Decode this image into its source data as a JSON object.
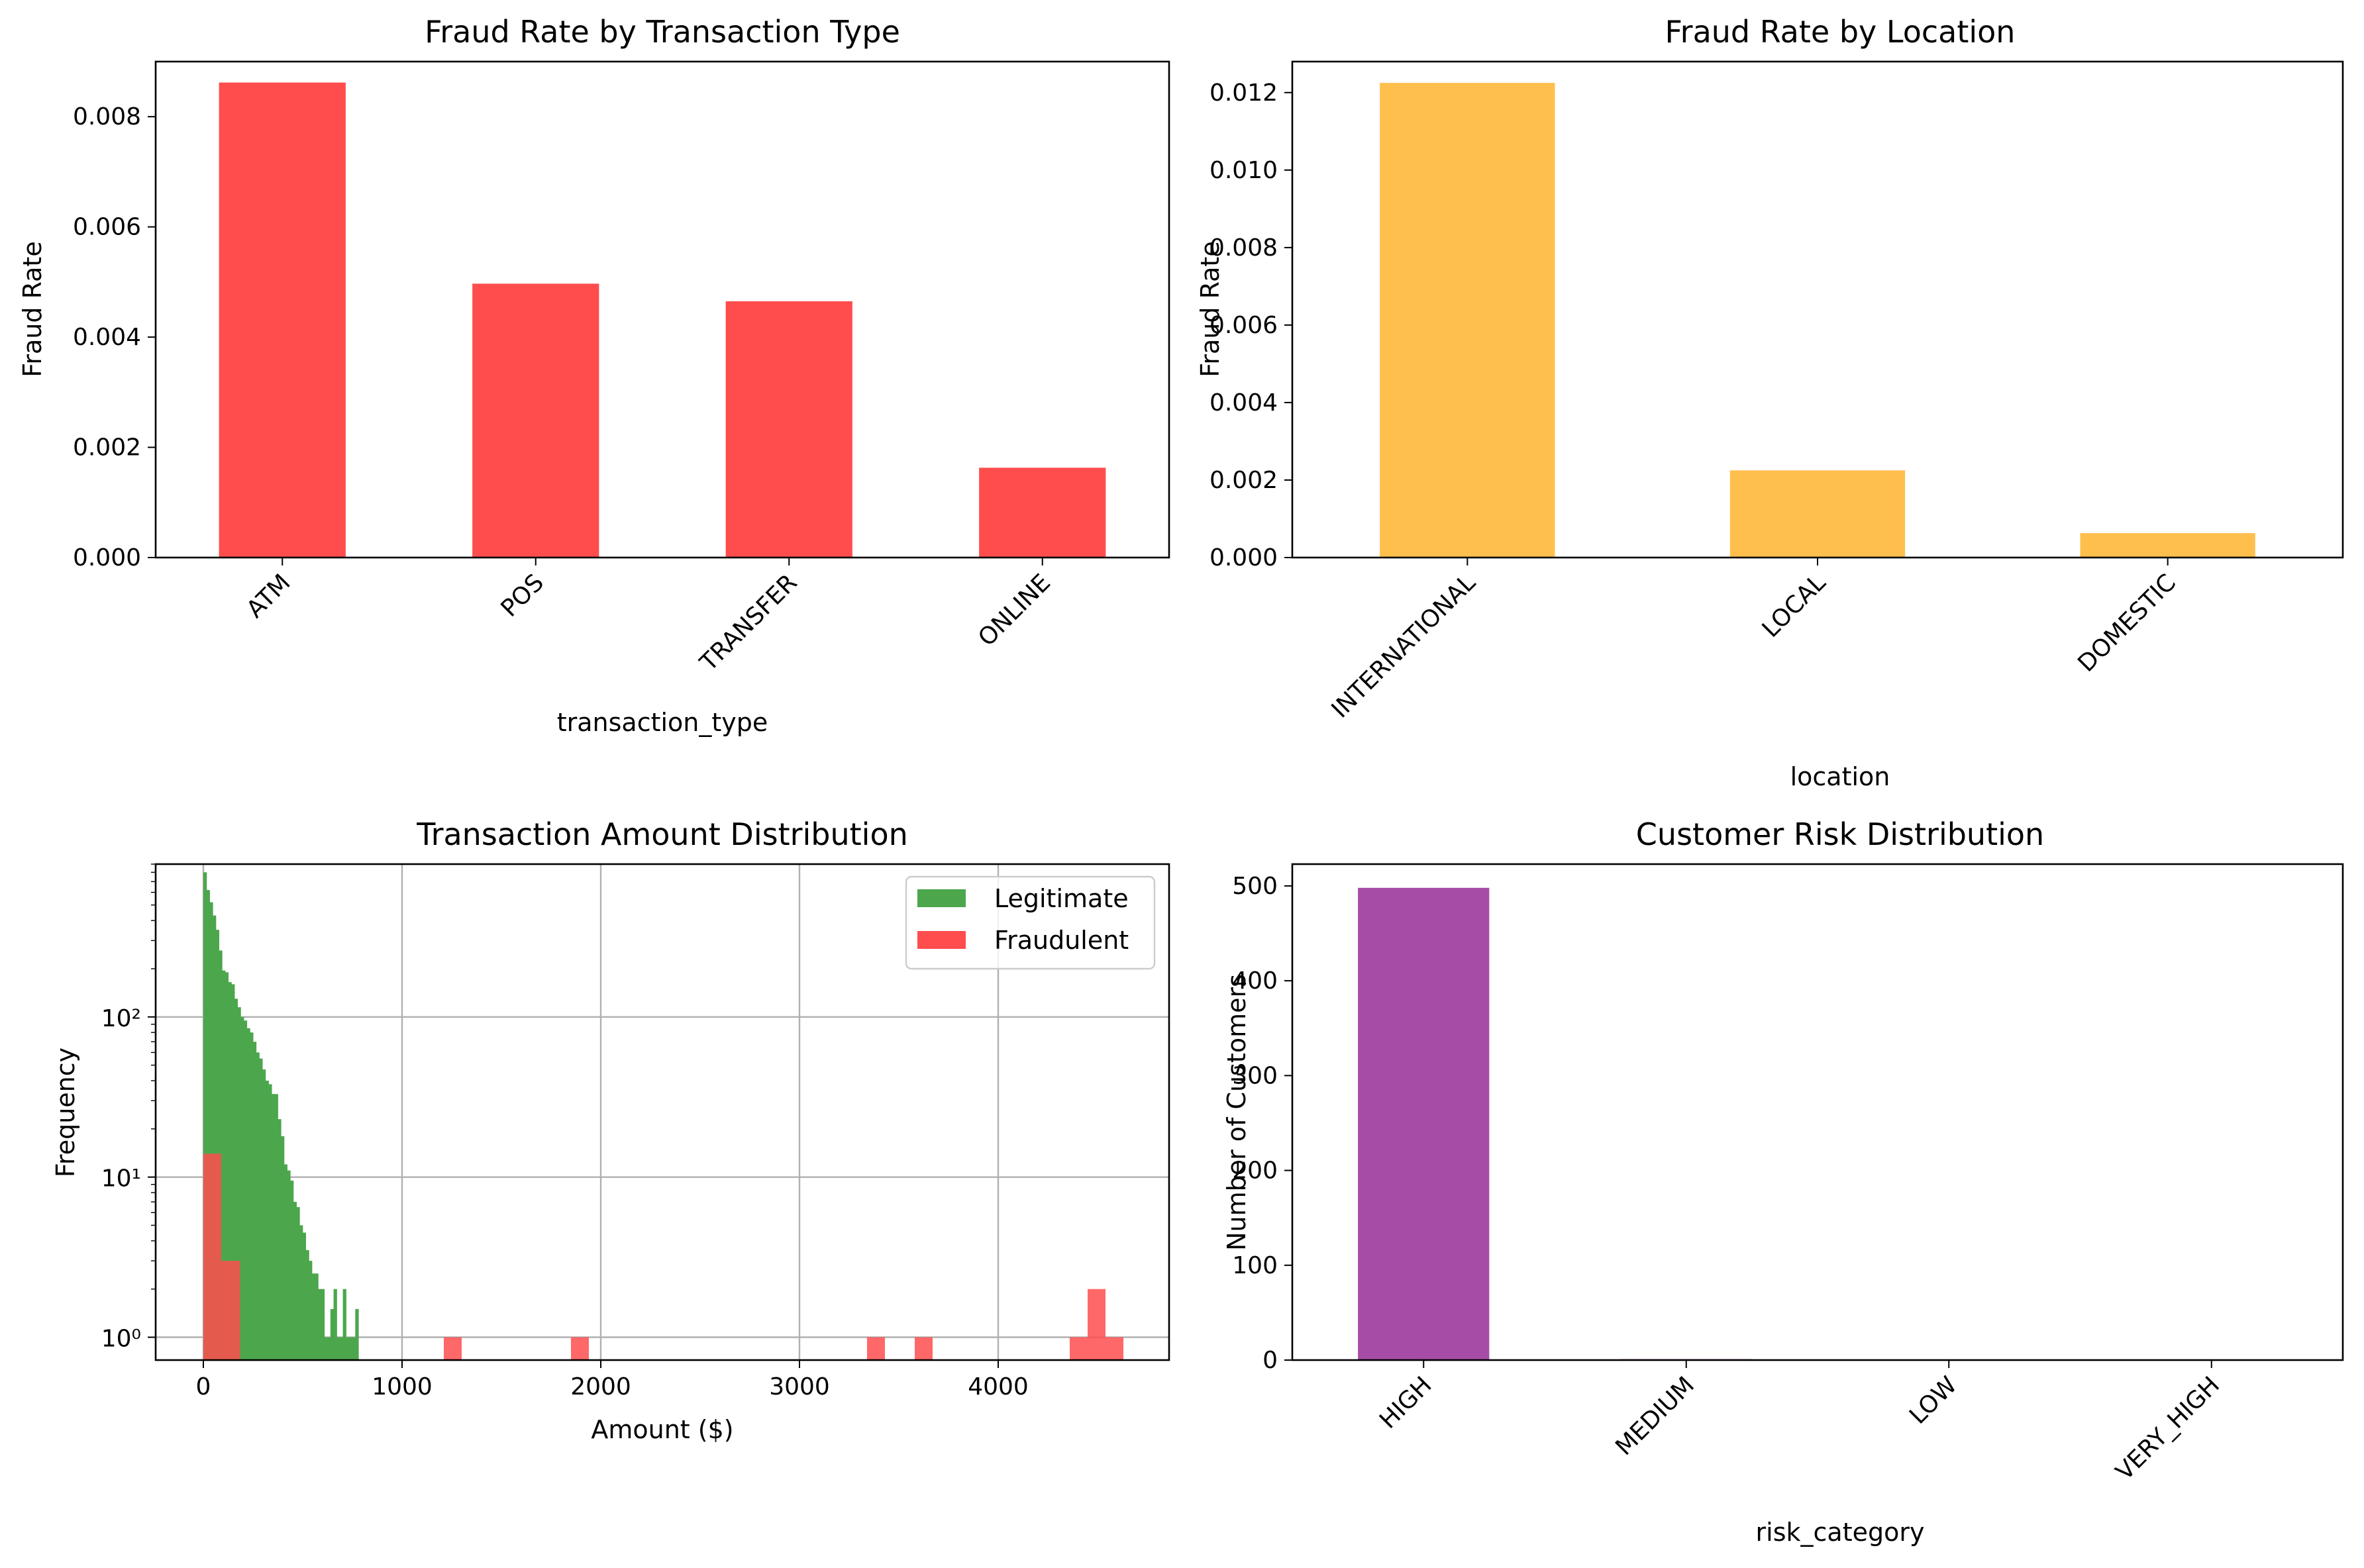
{
  "chart_data": [
    {
      "id": "type",
      "type": "bar",
      "title": "Fraud Rate by Transaction Type",
      "xlabel": "transaction_type",
      "ylabel": "Fraud Rate",
      "categories": [
        "ATM",
        "POS",
        "TRANSFER",
        "ONLINE"
      ],
      "values": [
        0.00862,
        0.00497,
        0.00465,
        0.00163
      ],
      "ylim": [
        0,
        0.009
      ],
      "yticks": [
        0.0,
        0.002,
        0.004,
        0.006,
        0.008
      ],
      "ytick_labels": [
        "0.000",
        "0.002",
        "0.004",
        "0.006",
        "0.008"
      ],
      "color": "#ff4d4d",
      "grid": false
    },
    {
      "id": "loc",
      "type": "bar",
      "title": "Fraud Rate by Location",
      "xlabel": "location",
      "ylabel": "Fraud Rate",
      "categories": [
        "INTERNATIONAL",
        "LOCAL",
        "DOMESTIC"
      ],
      "values": [
        0.01225,
        0.00225,
        0.00063
      ],
      "ylim": [
        0,
        0.0128
      ],
      "yticks": [
        0.0,
        0.002,
        0.004,
        0.006,
        0.008,
        0.01,
        0.012
      ],
      "ytick_labels": [
        "0.000",
        "0.002",
        "0.004",
        "0.006",
        "0.008",
        "0.010",
        "0.012"
      ],
      "color": "#ffbf4d",
      "grid": false
    },
    {
      "id": "amt",
      "type": "bar",
      "title": "Transaction Amount Distribution",
      "xlabel": "Amount ($)",
      "ylabel": "Frequency",
      "yscale": "log",
      "xlim": [
        -240,
        4860
      ],
      "ylim": [
        0.72,
        900
      ],
      "xticks": [
        0,
        1000,
        2000,
        3000,
        4000
      ],
      "xtick_labels": [
        "0",
        "1000",
        "2000",
        "3000",
        "4000"
      ],
      "yticks": [
        1,
        10,
        100
      ],
      "ytick_labels": [
        "10⁰",
        "10¹",
        "10²"
      ],
      "grid": true,
      "legend_position": "upper-right",
      "series": [
        {
          "name": "Legitimate",
          "color": "#4ca64c",
          "bin_width": 15.6,
          "bin_start": 0,
          "counts": [
            800,
            620,
            520,
            430,
            350,
            260,
            195,
            190,
            165,
            160,
            130,
            115,
            100,
            95,
            85,
            80,
            70,
            60,
            55,
            47,
            40,
            38,
            33,
            33,
            23,
            18,
            12,
            11,
            9.5,
            7,
            6.5,
            5,
            4.5,
            3.5,
            3,
            2.5,
            2.5,
            2,
            2,
            1,
            1,
            1.5,
            2,
            1,
            1,
            2,
            1,
            1,
            1,
            1.5
          ]
        },
        {
          "name": "Fraudulent",
          "color": "#ff4d4d",
          "bins": [
            {
              "x0": 0,
              "x1": 90,
              "count": 14
            },
            {
              "x0": 90,
              "x1": 185,
              "count": 3
            },
            {
              "x0": 1210,
              "x1": 1300,
              "count": 1
            },
            {
              "x0": 1850,
              "x1": 1940,
              "count": 1
            },
            {
              "x0": 3340,
              "x1": 3430,
              "count": 1
            },
            {
              "x0": 3580,
              "x1": 3670,
              "count": 1
            },
            {
              "x0": 4360,
              "x1": 4450,
              "count": 1
            },
            {
              "x0": 4450,
              "x1": 4540,
              "count": 2
            },
            {
              "x0": 4540,
              "x1": 4630,
              "count": 1
            }
          ]
        }
      ]
    },
    {
      "id": "risk",
      "type": "bar",
      "title": "Customer Risk Distribution",
      "xlabel": "risk_category",
      "ylabel": "Number of Customers",
      "categories": [
        "HIGH",
        "MEDIUM",
        "LOW",
        "VERY_HIGH"
      ],
      "values": [
        498,
        1,
        0,
        0
      ],
      "ylim": [
        0,
        523
      ],
      "yticks": [
        0,
        100,
        200,
        300,
        400,
        500
      ],
      "ytick_labels": [
        "0",
        "100",
        "200",
        "300",
        "400",
        "500"
      ],
      "color": "#a64ca6",
      "grid": false
    }
  ]
}
